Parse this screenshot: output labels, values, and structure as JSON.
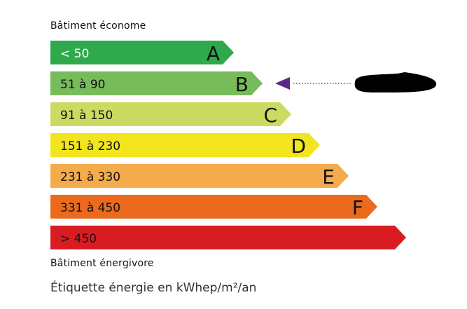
{
  "header": {
    "top_label": "Bâtiment économe",
    "bottom_label": "Bâtiment énergivore"
  },
  "footer": {
    "unit_note": "Étiquette énergie en kWhep/m²/an"
  },
  "classes": [
    {
      "letter": "A",
      "range": "< 50",
      "color": "#2ea94b",
      "text_color": "#ffffff"
    },
    {
      "letter": "B",
      "range": "51 à 90",
      "color": "#78bb5b",
      "text_color": "#111111"
    },
    {
      "letter": "C",
      "range": "91 à 150",
      "color": "#cbdb62",
      "text_color": "#111111"
    },
    {
      "letter": "D",
      "range": "151 à 230",
      "color": "#f2e51d",
      "text_color": "#111111"
    },
    {
      "letter": "E",
      "range": "231 à 330",
      "color": "#f4ab4c",
      "text_color": "#111111"
    },
    {
      "letter": "F",
      "range": "331 à 450",
      "color": "#eb6a1e",
      "text_color": "#111111"
    },
    {
      "letter": "",
      "range": "> 450",
      "color": "#d81d22",
      "text_color": "#111111"
    }
  ],
  "indicator": {
    "class": "B",
    "color": "#5b2a86",
    "value_redacted": true
  }
}
